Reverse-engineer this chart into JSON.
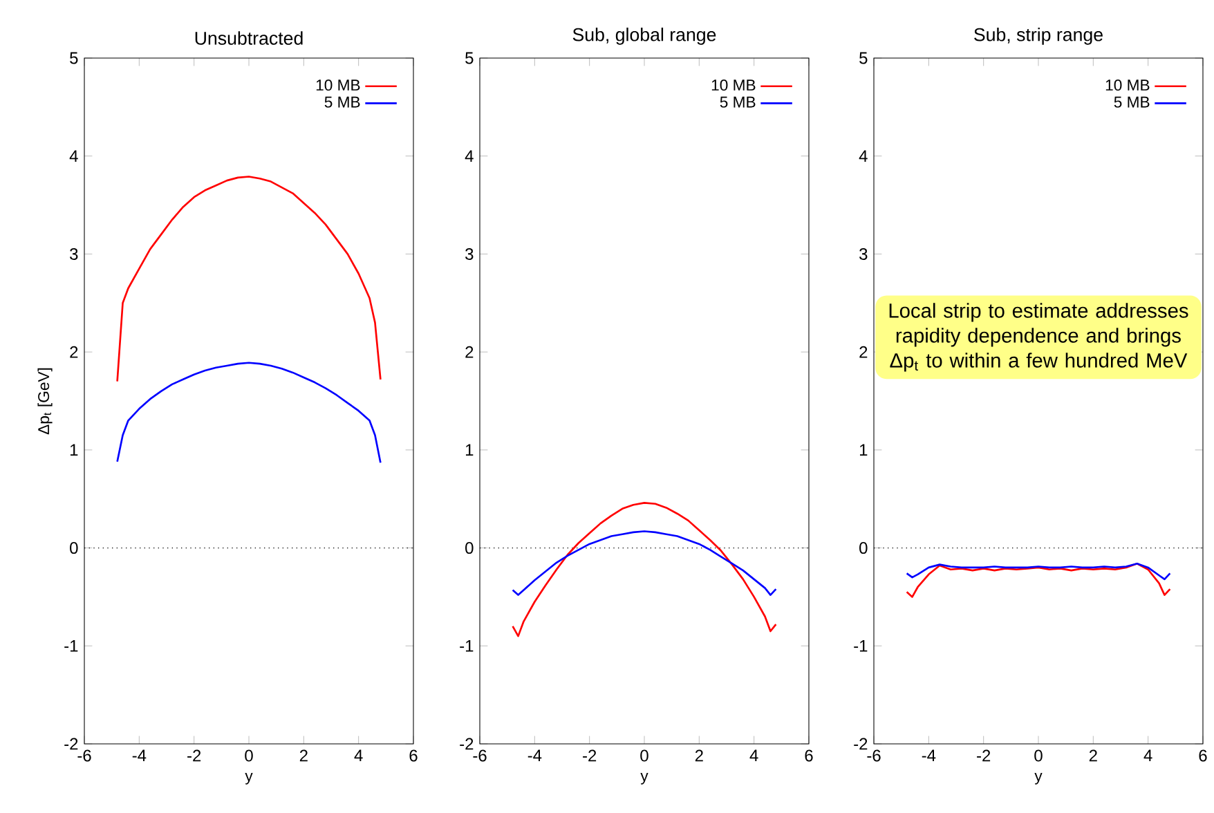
{
  "chart_data": [
    {
      "type": "line",
      "title": "Unsubtracted",
      "xlabel": "y",
      "ylabel": "Δp$_{t}$ [GeV]",
      "xlim": [
        -6,
        6
      ],
      "ylim": [
        -2,
        5
      ],
      "xticks": [
        -6,
        -4,
        -2,
        0,
        2,
        4,
        6
      ],
      "yticks": [
        -2,
        -1,
        0,
        1,
        2,
        3,
        4,
        5
      ],
      "legend": "top right",
      "ref_lines": [
        {
          "axis": "y",
          "value": 0,
          "line_style": "dotted"
        }
      ],
      "x": [
        -4.8,
        -4.6,
        -4.4,
        -4,
        -3.6,
        -3.2,
        -2.8,
        -2.4,
        -2,
        -1.6,
        -1.2,
        -0.8,
        -0.4,
        0,
        0.4,
        0.8,
        1.2,
        1.6,
        2,
        2.4,
        2.8,
        3.2,
        3.6,
        4,
        4.4,
        4.6,
        4.8
      ],
      "series": [
        {
          "name": "10 MB",
          "color": "#ff0000",
          "values": [
            1.7,
            2.5,
            2.65,
            2.85,
            3.05,
            3.2,
            3.35,
            3.48,
            3.58,
            3.65,
            3.7,
            3.75,
            3.78,
            3.79,
            3.77,
            3.74,
            3.68,
            3.62,
            3.52,
            3.42,
            3.3,
            3.15,
            3.0,
            2.8,
            2.55,
            2.3,
            1.72
          ]
        },
        {
          "name": "5 MB",
          "color": "#0000ff",
          "values": [
            0.88,
            1.15,
            1.3,
            1.42,
            1.52,
            1.6,
            1.67,
            1.72,
            1.77,
            1.81,
            1.84,
            1.86,
            1.88,
            1.89,
            1.88,
            1.86,
            1.83,
            1.79,
            1.74,
            1.69,
            1.63,
            1.56,
            1.48,
            1.4,
            1.3,
            1.15,
            0.87
          ]
        }
      ]
    },
    {
      "type": "line",
      "title": "Sub, global range",
      "xlabel": "y",
      "xlim": [
        -6,
        6
      ],
      "ylim": [
        -2,
        5
      ],
      "xticks": [
        -6,
        -4,
        -2,
        0,
        2,
        4,
        6
      ],
      "yticks": [
        -2,
        -1,
        0,
        1,
        2,
        3,
        4,
        5
      ],
      "legend": "top right",
      "ref_lines": [
        {
          "axis": "y",
          "value": 0,
          "line_style": "dotted"
        }
      ],
      "x": [
        -4.8,
        -4.6,
        -4.4,
        -4,
        -3.6,
        -3.2,
        -2.8,
        -2.4,
        -2,
        -1.6,
        -1.2,
        -0.8,
        -0.4,
        0,
        0.4,
        0.8,
        1.2,
        1.6,
        2,
        2.4,
        2.8,
        3.2,
        3.6,
        4,
        4.4,
        4.6,
        4.8
      ],
      "series": [
        {
          "name": "10 MB",
          "color": "#ff0000",
          "values": [
            -0.8,
            -0.9,
            -0.75,
            -0.55,
            -0.38,
            -0.22,
            -0.07,
            0.05,
            0.15,
            0.25,
            0.33,
            0.4,
            0.44,
            0.46,
            0.45,
            0.41,
            0.35,
            0.28,
            0.18,
            0.08,
            -0.03,
            -0.17,
            -0.32,
            -0.5,
            -0.7,
            -0.85,
            -0.78
          ]
        },
        {
          "name": "5 MB",
          "color": "#0000ff",
          "values": [
            -0.43,
            -0.48,
            -0.43,
            -0.33,
            -0.24,
            -0.15,
            -0.08,
            -0.02,
            0.04,
            0.08,
            0.12,
            0.14,
            0.16,
            0.17,
            0.16,
            0.14,
            0.12,
            0.08,
            0.04,
            -0.02,
            -0.09,
            -0.16,
            -0.23,
            -0.32,
            -0.41,
            -0.48,
            -0.42
          ]
        }
      ]
    },
    {
      "type": "line",
      "title": "Sub, strip range",
      "xlabel": "y",
      "xlim": [
        -6,
        6
      ],
      "ylim": [
        -2,
        5
      ],
      "xticks": [
        -6,
        -4,
        -2,
        0,
        2,
        4,
        6
      ],
      "yticks": [
        -2,
        -1,
        0,
        1,
        2,
        3,
        4,
        5
      ],
      "legend": "top right",
      "ref_lines": [
        {
          "axis": "y",
          "value": 0,
          "line_style": "dotted"
        }
      ],
      "annotations": [
        "Local strip to estimate addresses rapidity dependence and brings Δp$_{t}$ to within a few hundred MeV"
      ],
      "x": [
        -4.8,
        -4.6,
        -4.4,
        -4,
        -3.6,
        -3.2,
        -2.8,
        -2.4,
        -2,
        -1.6,
        -1.2,
        -0.8,
        -0.4,
        0,
        0.4,
        0.8,
        1.2,
        1.6,
        2,
        2.4,
        2.8,
        3.2,
        3.6,
        4,
        4.4,
        4.6,
        4.8
      ],
      "series": [
        {
          "name": "10 MB",
          "color": "#ff0000",
          "values": [
            -0.45,
            -0.5,
            -0.4,
            -0.27,
            -0.18,
            -0.22,
            -0.21,
            -0.23,
            -0.21,
            -0.23,
            -0.21,
            -0.22,
            -0.21,
            -0.2,
            -0.22,
            -0.21,
            -0.23,
            -0.21,
            -0.22,
            -0.21,
            -0.22,
            -0.2,
            -0.16,
            -0.22,
            -0.36,
            -0.48,
            -0.42
          ]
        },
        {
          "name": "5 MB",
          "color": "#0000ff",
          "values": [
            -0.26,
            -0.3,
            -0.27,
            -0.2,
            -0.17,
            -0.19,
            -0.2,
            -0.2,
            -0.2,
            -0.19,
            -0.2,
            -0.2,
            -0.2,
            -0.19,
            -0.2,
            -0.2,
            -0.19,
            -0.2,
            -0.2,
            -0.19,
            -0.2,
            -0.19,
            -0.16,
            -0.2,
            -0.28,
            -0.32,
            -0.26
          ]
        }
      ]
    }
  ]
}
